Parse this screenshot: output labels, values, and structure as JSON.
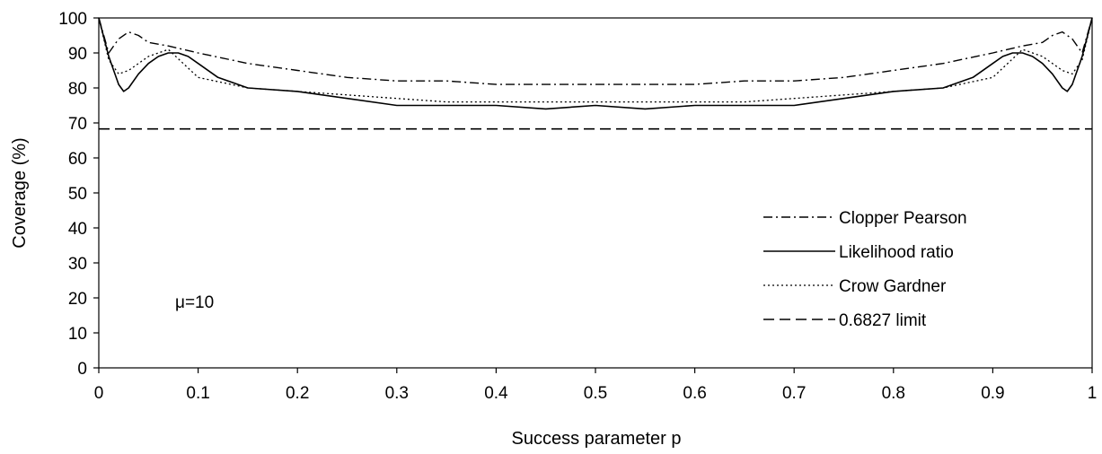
{
  "chart_data": {
    "type": "line",
    "xlabel": "Success parameter p",
    "ylabel": "Coverage (%)",
    "xlim": [
      0,
      1
    ],
    "ylim": [
      0,
      100
    ],
    "x_ticks": [
      "0",
      "0.1",
      "0.2",
      "0.3",
      "0.4",
      "0.5",
      "0.6",
      "0.7",
      "0.8",
      "0.9",
      "1"
    ],
    "y_ticks": [
      "0",
      "10",
      "20",
      "30",
      "40",
      "50",
      "60",
      "70",
      "80",
      "90",
      "100"
    ],
    "grid": false,
    "legend_position": "right",
    "annotation": "μ=10",
    "series": [
      {
        "name": "Clopper Pearson",
        "style": "dash-dot",
        "x": [
          0,
          0.01,
          0.02,
          0.03,
          0.04,
          0.05,
          0.07,
          0.1,
          0.15,
          0.2,
          0.25,
          0.3,
          0.35,
          0.4,
          0.45,
          0.5,
          0.55,
          0.6,
          0.65,
          0.7,
          0.75,
          0.8,
          0.85,
          0.9,
          0.93,
          0.95,
          0.96,
          0.97,
          0.98,
          0.99,
          1
        ],
        "y": [
          100,
          90,
          94,
          96,
          95,
          93,
          92,
          90,
          87,
          85,
          83,
          82,
          82,
          81,
          81,
          81,
          81,
          81,
          82,
          82,
          83,
          85,
          87,
          90,
          92,
          93,
          95,
          96,
          94,
          90,
          100
        ]
      },
      {
        "name": "Likelihood ratio",
        "style": "solid",
        "x": [
          0,
          0.01,
          0.02,
          0.025,
          0.03,
          0.04,
          0.05,
          0.06,
          0.07,
          0.08,
          0.09,
          0.1,
          0.12,
          0.15,
          0.2,
          0.25,
          0.3,
          0.35,
          0.4,
          0.45,
          0.5,
          0.55,
          0.6,
          0.65,
          0.7,
          0.75,
          0.8,
          0.85,
          0.88,
          0.9,
          0.91,
          0.92,
          0.93,
          0.94,
          0.95,
          0.96,
          0.97,
          0.975,
          0.98,
          0.99,
          1
        ],
        "y": [
          100,
          89,
          81,
          79,
          80,
          84,
          87,
          89,
          90,
          90,
          89,
          87,
          83,
          80,
          79,
          77,
          75,
          75,
          75,
          74,
          75,
          74,
          75,
          75,
          75,
          77,
          79,
          80,
          83,
          87,
          89,
          90,
          90,
          89,
          87,
          84,
          80,
          79,
          81,
          89,
          100
        ]
      },
      {
        "name": "Crow Gardner",
        "style": "dotted",
        "x": [
          0,
          0.01,
          0.02,
          0.03,
          0.05,
          0.07,
          0.1,
          0.15,
          0.2,
          0.25,
          0.3,
          0.35,
          0.4,
          0.45,
          0.5,
          0.55,
          0.6,
          0.65,
          0.7,
          0.75,
          0.8,
          0.85,
          0.9,
          0.93,
          0.95,
          0.97,
          0.98,
          0.99,
          1
        ],
        "y": [
          100,
          88,
          84,
          85,
          89,
          91,
          83,
          80,
          79,
          78,
          77,
          76,
          76,
          76,
          76,
          76,
          76,
          76,
          77,
          78,
          79,
          80,
          83,
          91,
          89,
          85,
          84,
          88,
          100
        ]
      },
      {
        "name": "0.6827 limit",
        "style": "dashed",
        "x": [
          0,
          1
        ],
        "y": [
          68.27,
          68.27
        ]
      }
    ]
  }
}
